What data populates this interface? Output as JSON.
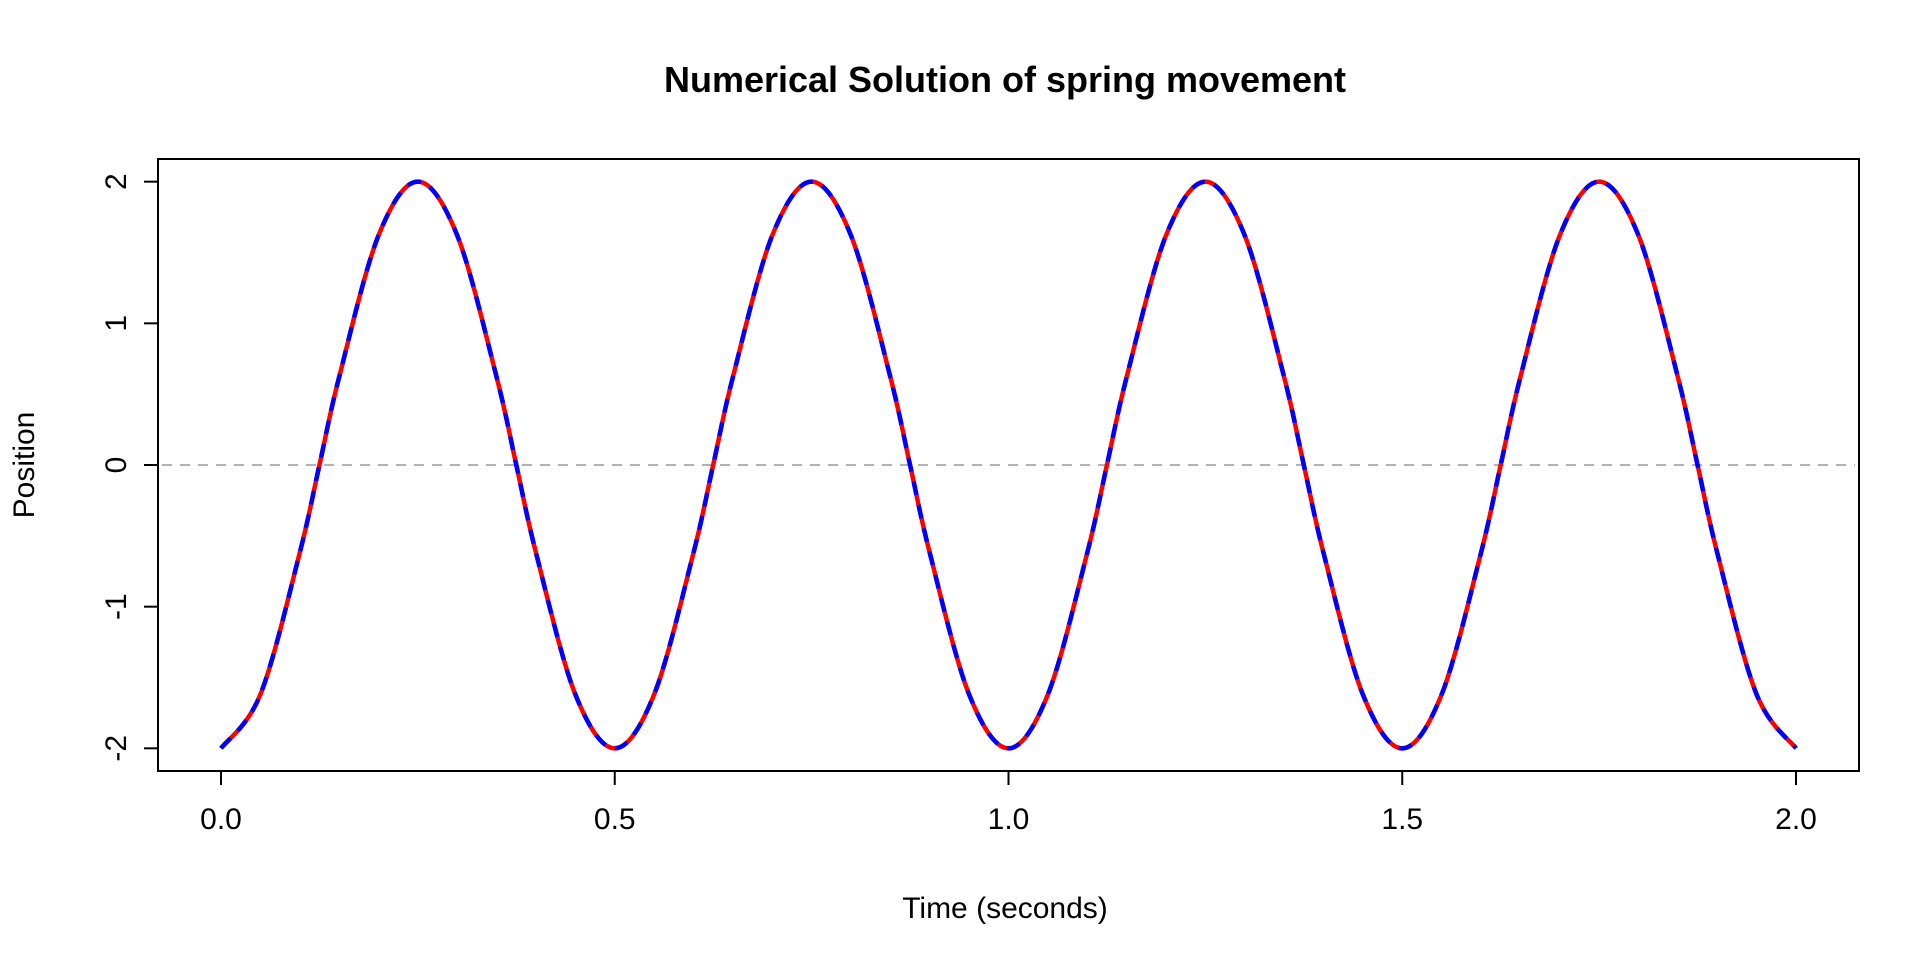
{
  "chart_data": {
    "type": "line",
    "title": "Numerical Solution of spring movement",
    "xlabel": "Time (seconds)",
    "ylabel": "Position",
    "xlim": [
      -0.08,
      2.08
    ],
    "ylim": [
      -2.16,
      2.16
    ],
    "x_ticks": [
      0.0,
      0.5,
      1.0,
      1.5,
      2.0
    ],
    "x_tick_labels": [
      "0.0",
      "0.5",
      "1.0",
      "1.5",
      "2.0"
    ],
    "y_ticks": [
      -2,
      -1,
      0,
      1,
      2
    ],
    "y_tick_labels": [
      "-2",
      "-1",
      "0",
      "1",
      "2"
    ],
    "grid": false,
    "legend": "none",
    "reference_line": {
      "y": 0,
      "color": "#b3b3b3",
      "style": "dashed"
    },
    "series": [
      {
        "color": "#ff0000",
        "style": "solid",
        "x": [
          0.0,
          0.05,
          0.1,
          0.125,
          0.15,
          0.2,
          0.25,
          0.3,
          0.35,
          0.375,
          0.4,
          0.45,
          0.5,
          0.55,
          0.6,
          0.625,
          0.65,
          0.7,
          0.75,
          0.8,
          0.85,
          0.875,
          0.9,
          0.95,
          1.0,
          1.05,
          1.1,
          1.125,
          1.15,
          1.2,
          1.25,
          1.3,
          1.35,
          1.375,
          1.4,
          1.45,
          1.5,
          1.55,
          1.6,
          1.625,
          1.65,
          1.7,
          1.75,
          1.8,
          1.85,
          1.875,
          1.9,
          1.95,
          2.0
        ],
        "y": [
          -2.0,
          -1.62,
          -0.62,
          0.0,
          0.62,
          1.62,
          2.0,
          1.62,
          0.62,
          0.0,
          -0.62,
          -1.62,
          -2.0,
          -1.62,
          -0.62,
          0.0,
          0.62,
          1.62,
          2.0,
          1.62,
          0.62,
          0.0,
          -0.62,
          -1.62,
          -2.0,
          -1.62,
          -0.62,
          0.0,
          0.62,
          1.62,
          2.0,
          1.62,
          0.62,
          0.0,
          -0.62,
          -1.62,
          -2.0,
          -1.62,
          -0.62,
          0.0,
          0.62,
          1.62,
          2.0,
          1.62,
          0.62,
          0.0,
          -0.62,
          -1.62,
          -2.0
        ]
      },
      {
        "color": "#0000ff",
        "style": "dashed",
        "x": [
          0.0,
          0.05,
          0.1,
          0.125,
          0.15,
          0.2,
          0.25,
          0.3,
          0.35,
          0.375,
          0.4,
          0.45,
          0.5,
          0.55,
          0.6,
          0.625,
          0.65,
          0.7,
          0.75,
          0.8,
          0.85,
          0.875,
          0.9,
          0.95,
          1.0,
          1.05,
          1.1,
          1.125,
          1.15,
          1.2,
          1.25,
          1.3,
          1.35,
          1.375,
          1.4,
          1.45,
          1.5,
          1.55,
          1.6,
          1.625,
          1.65,
          1.7,
          1.75,
          1.8,
          1.85,
          1.875,
          1.9,
          1.95,
          2.0
        ],
        "y": [
          -2.0,
          -1.62,
          -0.62,
          0.0,
          0.62,
          1.62,
          2.0,
          1.62,
          0.62,
          0.0,
          -0.62,
          -1.62,
          -2.0,
          -1.62,
          -0.62,
          0.0,
          0.62,
          1.62,
          2.0,
          1.62,
          0.62,
          0.0,
          -0.62,
          -1.62,
          -2.0,
          -1.62,
          -0.62,
          0.0,
          0.62,
          1.62,
          2.0,
          1.62,
          0.62,
          0.0,
          -0.62,
          -1.62,
          -2.0,
          -1.62,
          -0.62,
          0.0,
          0.62,
          1.62,
          2.0,
          1.62,
          0.62,
          0.0,
          -0.62,
          -1.62,
          -2.0
        ]
      }
    ]
  }
}
